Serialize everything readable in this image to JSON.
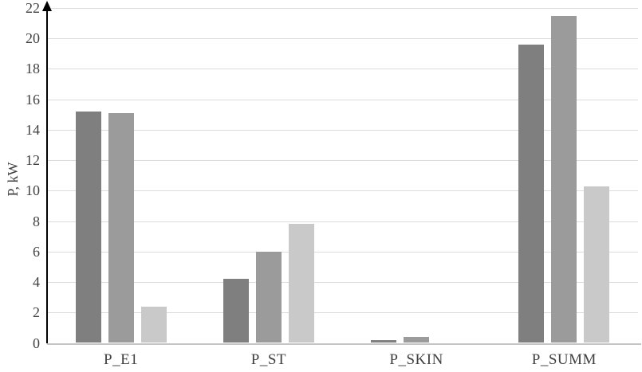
{
  "chart_data": {
    "type": "bar",
    "title": "",
    "categories": [
      "P_E1",
      "P_ST",
      "P_SKIN",
      "P_SUMM"
    ],
    "series": [
      {
        "name": "series-1-dark-gray",
        "color": "#7f7f7f",
        "values": [
          15.2,
          4.2,
          0.2,
          19.6
        ]
      },
      {
        "name": "series-2-medium-gray",
        "color": "#9b9b9b",
        "values": [
          15.1,
          6.0,
          0.4,
          21.5
        ]
      },
      {
        "name": "series-3-light-gray",
        "color": "#c9c9c9",
        "values": [
          2.4,
          7.8,
          0.0,
          10.3
        ]
      }
    ],
    "xlabel": "",
    "ylabel": "P, kW",
    "ylim": [
      0,
      22
    ],
    "ytick_step": 2,
    "grid": true,
    "legend": false,
    "colors": {
      "grid": "#dcdcdc",
      "baseline": "#c4c4c4",
      "axis": "#000000",
      "text": "#404040",
      "background": "#ffffff"
    }
  }
}
